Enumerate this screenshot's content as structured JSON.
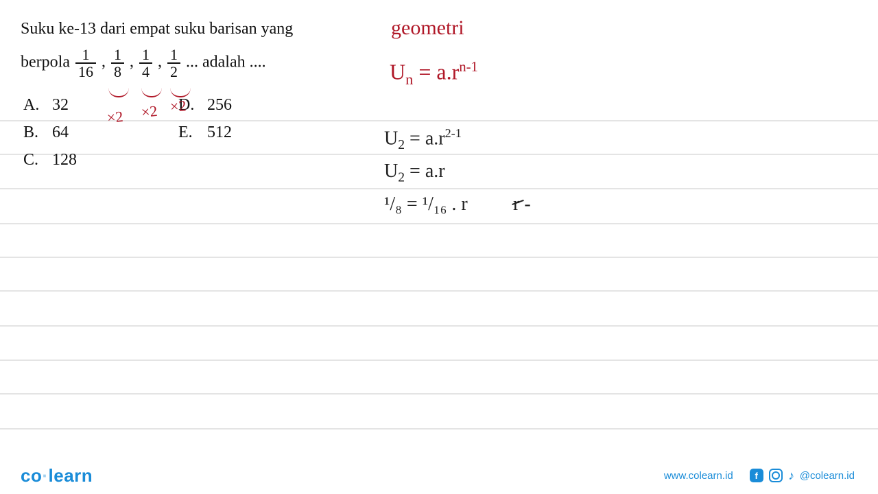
{
  "ruled_lines_y": [
    175,
    224,
    274,
    325,
    374,
    423,
    474,
    524,
    573,
    624
  ],
  "ruled_line_color": "#e4e4e4",
  "question": {
    "line1": "Suku ke-13 dari empat suku barisan yang",
    "lead": "berpola",
    "trail": "... adalah ....",
    "fractions": [
      {
        "num": "1",
        "den": "16"
      },
      {
        "num": "1",
        "den": "8"
      },
      {
        "num": "1",
        "den": "4"
      },
      {
        "num": "1",
        "den": "2"
      }
    ],
    "text_color": "#111111",
    "font_size": 24
  },
  "options": {
    "colA": [
      {
        "label": "A.",
        "value": "32"
      },
      {
        "label": "B.",
        "value": "64"
      },
      {
        "label": "C.",
        "value": "128"
      }
    ],
    "colB": [
      {
        "label": "D.",
        "value": "256"
      },
      {
        "label": "E.",
        "value": "512"
      }
    ]
  },
  "annotations_red": {
    "color": "#b01828",
    "x2_labels": [
      "×2",
      "×2",
      "×2"
    ],
    "geometri": "geometri",
    "un_formula_html": "U<sub>n</sub> = a.r<sup>n-1</sup>"
  },
  "work_black": {
    "color": "#222222",
    "lines": [
      "U<sub>2</sub> = a.r<sup>2-1</sup>",
      "U<sub>2</sub> = a.r",
      "¹/₈ = ¹/₁₆ . r"
    ],
    "strike_text": "r"
  },
  "footer": {
    "logo_pre": "co",
    "logo_post": "learn",
    "url": "www.colearn.id",
    "handle": "@colearn.id",
    "brand_color": "#1a8cd8"
  }
}
